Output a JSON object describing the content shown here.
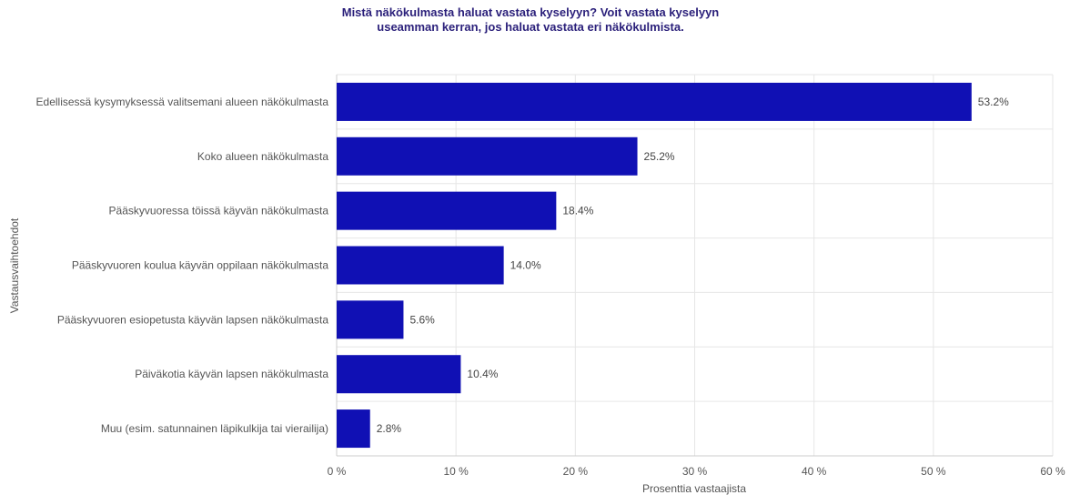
{
  "chart_data": {
    "type": "bar",
    "orientation": "horizontal",
    "title_lines": [
      "Mistä näkökulmasta haluat vastata kyselyyn? Voit vastata kyselyyn",
      "useamman kerran, jos haluat vastata eri näkökulmista."
    ],
    "xlabel": "Prosenttia vastaajista",
    "ylabel": "Vastausvaihtoehdot",
    "xlim": [
      0,
      60
    ],
    "xticks": [
      0,
      10,
      20,
      30,
      40,
      50,
      60
    ],
    "xtick_labels": [
      "0 %",
      "10 %",
      "20 %",
      "30 %",
      "40 %",
      "50 %",
      "60 %"
    ],
    "grid": true,
    "categories": [
      "Edellisessä kysymyksessä valitsemani alueen näkökulmasta",
      "Koko alueen näkökulmasta",
      "Pääskyvuoressa töissä käyvän näkökulmasta",
      "Pääskyvuoren koulua käyvän oppilaan näkökulmasta",
      "Pääskyvuoren esiopetusta käyvän lapsen näkökulmasta",
      "Päiväkotia käyvän lapsen näkökulmasta",
      "Muu (esim. satunnainen läpikulkija tai vierailija)"
    ],
    "values": [
      53.2,
      25.2,
      18.4,
      14.0,
      5.6,
      10.4,
      2.8
    ],
    "value_labels": [
      "53.2%",
      "25.2%",
      "18.4%",
      "14.0%",
      "5.6%",
      "10.4%",
      "2.8%"
    ],
    "bar_color": "#1010b4",
    "grid_color": "#e6e6e6",
    "title_color": "#2a1f7a"
  }
}
